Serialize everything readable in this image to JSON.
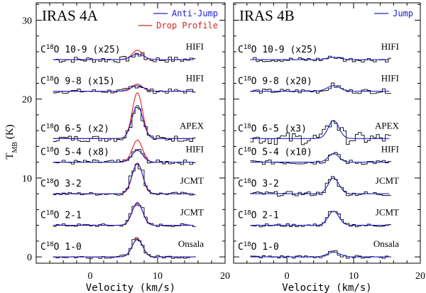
{
  "y_axis_label": "TMB (K)",
  "chart_data": [
    {
      "type": "line",
      "title": "IRAS 4A",
      "xlabel": "Velocity (km/s)",
      "ylabel": "TMB (K)",
      "xlim": [
        -8,
        20
      ],
      "ylim": [
        -0.8,
        32.2
      ],
      "x_ticks": [
        0,
        10,
        20
      ],
      "y_ticks": [
        0,
        10,
        20,
        30
      ],
      "legend": [
        {
          "name": "Anti-Jump",
          "color": "#2020d0"
        },
        {
          "name": "Drop Profile",
          "color": "#e02020"
        }
      ],
      "transitions": [
        {
          "label": "C18O 10-9 (x25)",
          "instrument": "HIFI",
          "offset": 25,
          "peak": 0.7,
          "model2_peak": 1.2,
          "scatter": 0.4
        },
        {
          "label": "C18O 9-8 (x15)",
          "instrument": "HIFI",
          "offset": 21,
          "peak": 0.7,
          "model2_peak": 0.9,
          "scatter": 0.3
        },
        {
          "label": "C18O 6-5 (x2)",
          "instrument": "APEX",
          "offset": 15,
          "peak": 4.2,
          "model2_peak": 5.8,
          "scatter": 0.4
        },
        {
          "label": "C18O 5-4 (x8)",
          "instrument": "HIFI",
          "offset": 12,
          "peak": 1.5,
          "model2_peak": 2.8,
          "scatter": 0.3
        },
        {
          "label": "C18O 3-2",
          "instrument": "JCMT",
          "offset": 8,
          "peak": 3.8,
          "model2_peak": 3.9,
          "scatter": 0.2
        },
        {
          "label": "C18O 2-1",
          "instrument": "JCMT",
          "offset": 4,
          "peak": 2.8,
          "model2_peak": 2.9,
          "scatter": 0.2
        },
        {
          "label": "C18O 1-0",
          "instrument": "Onsala",
          "offset": 0,
          "peak": 2.2,
          "model2_peak": 2.3,
          "scatter": 0.2
        }
      ]
    },
    {
      "type": "line",
      "title": "IRAS 4B",
      "xlabel": "Velocity (km/s)",
      "xlim": [
        -8,
        20
      ],
      "ylim": [
        -0.8,
        32.2
      ],
      "x_ticks": [
        0,
        10,
        20
      ],
      "y_ticks": [
        0,
        10,
        20,
        30
      ],
      "legend": [
        {
          "name": "Jump",
          "color": "#2020d0"
        }
      ],
      "transitions": [
        {
          "label": "C18O 10-9 (x25)",
          "instrument": "HIFI",
          "offset": 25,
          "peak": 0.3,
          "scatter": 0.3
        },
        {
          "label": "C18O 9-8 (x20)",
          "instrument": "HIFI",
          "offset": 21,
          "peak": 0.7,
          "scatter": 0.3
        },
        {
          "label": "C18O 6-5 (x3)",
          "instrument": "APEX",
          "offset": 15,
          "peak": 2.3,
          "scatter": 0.8
        },
        {
          "label": "C18O 5-4 (x10)",
          "instrument": "HIFI",
          "offset": 12,
          "peak": 1.1,
          "scatter": 0.3
        },
        {
          "label": "C18O 3-2",
          "instrument": "JCMT",
          "offset": 8,
          "peak": 2.0,
          "scatter": 0.3
        },
        {
          "label": "C18O 2-1",
          "instrument": "JCMT",
          "offset": 4,
          "peak": 1.8,
          "scatter": 0.2
        },
        {
          "label": "C18O 1-0",
          "instrument": "Onsala",
          "offset": 0,
          "peak": 0.6,
          "scatter": 0.2
        }
      ]
    }
  ]
}
